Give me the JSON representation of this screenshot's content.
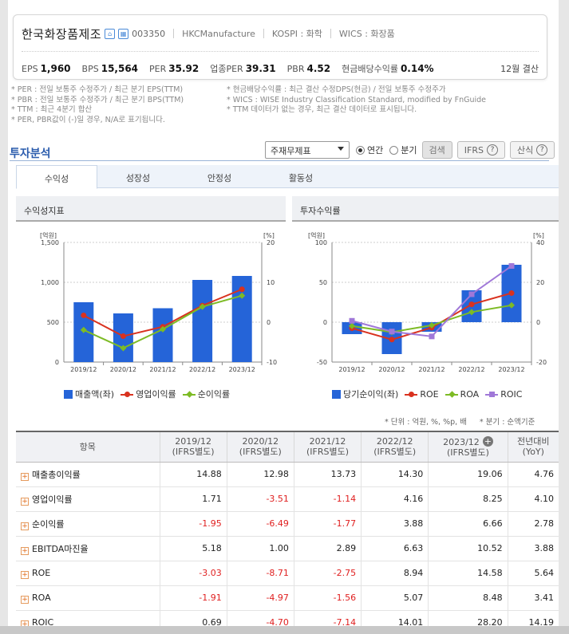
{
  "header": {
    "company_name": "한국화장품제조",
    "code": "003350",
    "english_name": "HKCManufacture",
    "market": "KOSPI : 화학",
    "wics": "WICS : 화장품",
    "stats": [
      {
        "label": "EPS",
        "value": "1,960"
      },
      {
        "label": "BPS",
        "value": "15,564"
      },
      {
        "label": "PER",
        "value": "35.92"
      },
      {
        "label": "업종PER",
        "value": "39.31"
      },
      {
        "label": "PBR",
        "value": "4.52"
      },
      {
        "label": "현금배당수익률",
        "value": "0.14%"
      }
    ],
    "settlement": "12월 결산"
  },
  "notes": {
    "left": [
      "* PER : 전일 보통주 수정주가 / 최근 분기 EPS(TTM)",
      "* PBR : 전일 보통주 수정주가 / 최근 분기 BPS(TTM)",
      "* TTM : 최근 4분기 합산",
      "* PER, PBR값이 (-)일 경우, N/A로 표기됩니다."
    ],
    "right": [
      "* 현금배당수익률 : 최근 결산 수정DPS(현금) / 전일 보통주 수정주가",
      "* WICS : WISE Industry Classification Standard, modified by FnGuide",
      "* TTM 데이터가 없는 경우, 최근 결산 데이터로 표시됩니다."
    ]
  },
  "section_title": "투자분석",
  "controls": {
    "select_value": "주재무제표",
    "radio_annual": "연간",
    "radio_quarter": "분기",
    "search_button": "검색",
    "ifrs_button": "IFRS",
    "formula_button": "산식"
  },
  "tabs": [
    "수익성",
    "성장성",
    "안정성",
    "활동성"
  ],
  "units_note": "* 단위 : 억원, %, %p, 배",
  "quarter_note": "* 분기 : 순액기준",
  "chart_data": [
    {
      "type": "bar",
      "title": "수익성지표",
      "categories": [
        "2019/12",
        "2020/12",
        "2021/12",
        "2022/12",
        "2023/12"
      ],
      "left_unit": "[억원]",
      "right_unit": "[%]",
      "ylim": [
        0,
        1500
      ],
      "yticks": [
        "0",
        "500",
        "1,000",
        "1,500"
      ],
      "y2lim": [
        -10,
        20
      ],
      "y2ticks": [
        "-10",
        "0",
        "10",
        "20"
      ],
      "series": [
        {
          "name": "매출액(좌)",
          "type": "bar",
          "axis": "left",
          "color": "#2564d8",
          "values": [
            750,
            610,
            675,
            1030,
            1080
          ]
        },
        {
          "name": "영업이익률",
          "type": "line",
          "axis": "right",
          "marker": "circle",
          "color": "#d9321f",
          "values": [
            1.71,
            -3.51,
            -1.14,
            4.16,
            8.25
          ]
        },
        {
          "name": "순이익률",
          "type": "line",
          "axis": "right",
          "marker": "diamond",
          "color": "#7dbb25",
          "values": [
            -1.95,
            -6.49,
            -1.77,
            3.88,
            6.66
          ]
        }
      ]
    },
    {
      "type": "bar",
      "title": "투자수익률",
      "categories": [
        "2019/12",
        "2020/12",
        "2021/12",
        "2022/12",
        "2023/12"
      ],
      "left_unit": "[억원]",
      "right_unit": "[%]",
      "ylim": [
        -50,
        100
      ],
      "yticks": [
        "-50",
        "0",
        "50",
        "100"
      ],
      "y2lim": [
        -20,
        40
      ],
      "y2ticks": [
        "-20",
        "0",
        "20",
        "40"
      ],
      "series": [
        {
          "name": "당기순이익(좌)",
          "type": "bar",
          "axis": "left",
          "color": "#2564d8",
          "values": [
            -15,
            -40,
            -12,
            40,
            72
          ]
        },
        {
          "name": "ROE",
          "type": "line",
          "axis": "right",
          "marker": "circle",
          "color": "#d9321f",
          "values": [
            -3.03,
            -8.71,
            -2.75,
            8.94,
            14.58
          ]
        },
        {
          "name": "ROA",
          "type": "line",
          "axis": "right",
          "marker": "diamond",
          "color": "#7dbb25",
          "values": [
            -1.91,
            -4.97,
            -1.56,
            5.07,
            8.48
          ]
        },
        {
          "name": "ROIC",
          "type": "line",
          "axis": "right",
          "marker": "square",
          "color": "#a078d8",
          "values": [
            0.69,
            -4.7,
            -7.14,
            14.01,
            28.2
          ]
        }
      ]
    }
  ],
  "table": {
    "header_item": "항목",
    "columns": [
      {
        "year": "2019/12",
        "basis": "(IFRS별도)"
      },
      {
        "year": "2020/12",
        "basis": "(IFRS별도)"
      },
      {
        "year": "2021/12",
        "basis": "(IFRS별도)"
      },
      {
        "year": "2022/12",
        "basis": "(IFRS별도)"
      },
      {
        "year": "2023/12",
        "basis": "(IFRS별도)"
      },
      {
        "year": "전년대비",
        "basis": "(YoY)"
      }
    ],
    "rows": [
      {
        "label": "매출총이익률",
        "values": [
          "14.88",
          "12.98",
          "13.73",
          "14.30",
          "19.06",
          "4.76"
        ]
      },
      {
        "label": "영업이익률",
        "values": [
          "1.71",
          "-3.51",
          "-1.14",
          "4.16",
          "8.25",
          "4.10"
        ]
      },
      {
        "label": "순이익률",
        "values": [
          "-1.95",
          "-6.49",
          "-1.77",
          "3.88",
          "6.66",
          "2.78"
        ]
      },
      {
        "label": "EBITDA마진율",
        "values": [
          "5.18",
          "1.00",
          "2.89",
          "6.63",
          "10.52",
          "3.88"
        ]
      },
      {
        "label": "ROE",
        "values": [
          "-3.03",
          "-8.71",
          "-2.75",
          "8.94",
          "14.58",
          "5.64"
        ]
      },
      {
        "label": "ROA",
        "values": [
          "-1.91",
          "-4.97",
          "-1.56",
          "5.07",
          "8.48",
          "3.41"
        ]
      },
      {
        "label": "ROIC",
        "values": [
          "0.69",
          "-4.70",
          "-7.14",
          "14.01",
          "28.20",
          "14.19"
        ]
      }
    ]
  }
}
